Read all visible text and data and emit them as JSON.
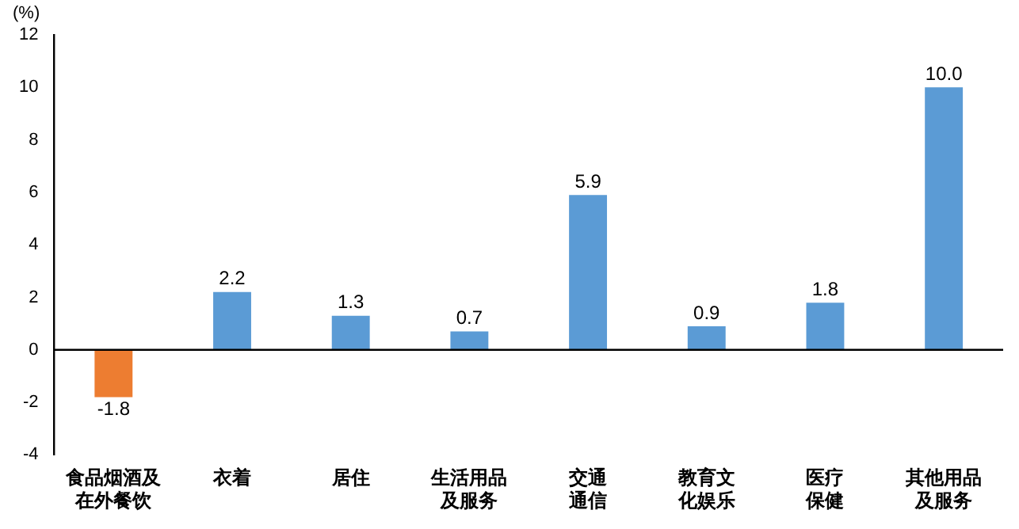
{
  "chart_data": {
    "type": "bar",
    "ylabel": "(%)",
    "categories": [
      "食品烟酒及在外餐饮",
      "衣着",
      "居住",
      "生活用品及服务",
      "交通通信",
      "教育文化娱乐",
      "医疗保健",
      "其他用品及服务"
    ],
    "values": [
      -1.8,
      2.2,
      1.3,
      0.7,
      5.9,
      0.9,
      1.8,
      10.0
    ],
    "colors": [
      "#ed7d31",
      "#5b9bd5",
      "#5b9bd5",
      "#5b9bd5",
      "#5b9bd5",
      "#5b9bd5",
      "#5b9bd5",
      "#5b9bd5"
    ],
    "value_labels": [
      "-1.8",
      "2.2",
      "1.3",
      "0.7",
      "5.9",
      "0.9",
      "1.8",
      "10.0"
    ],
    "ylim": [
      -4,
      12
    ],
    "yticks": [
      -4,
      -2,
      0,
      2,
      4,
      6,
      8,
      10,
      12
    ],
    "legend": false
  }
}
